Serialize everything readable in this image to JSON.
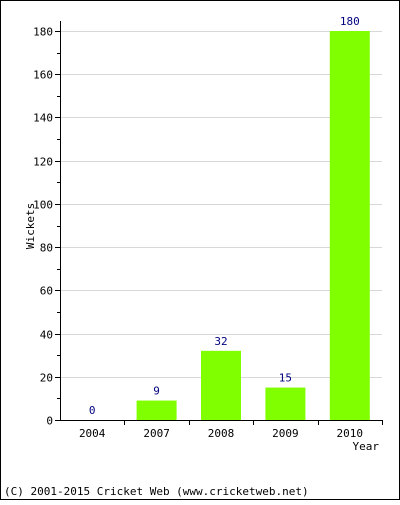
{
  "chart_data": {
    "type": "bar",
    "categories": [
      "2004",
      "2007",
      "2008",
      "2009",
      "2010"
    ],
    "values": [
      0,
      9,
      32,
      15,
      180
    ],
    "data_labels": [
      "0",
      "9",
      "32",
      "15",
      "180"
    ],
    "xlabel": "Year",
    "ylabel": "Wickets",
    "ylim": [
      0,
      180
    ],
    "yticks": [
      0,
      20,
      40,
      60,
      80,
      100,
      120,
      140,
      160,
      180
    ],
    "grid": true,
    "bar_color": "#80ff00",
    "label_color": "#000080"
  },
  "footer": {
    "copyright": "(C) 2001-2015 Cricket Web (www.cricketweb.net)"
  }
}
